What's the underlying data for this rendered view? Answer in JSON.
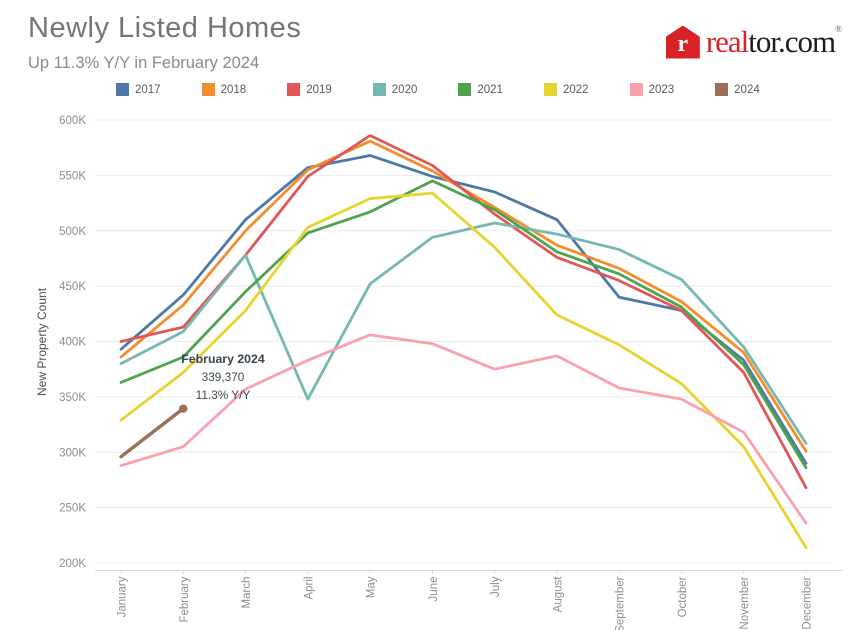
{
  "header": {
    "title": "Newly Listed Homes",
    "subtitle": "Up 11.3% Y/Y in February 2024"
  },
  "logo": {
    "house_letter": "r",
    "text_red": "real",
    "text_dark": "tor.com",
    "registered_mark": "®",
    "brand_red": "#d92228"
  },
  "legend": [
    {
      "label": "2017",
      "color": "#4e79a7"
    },
    {
      "label": "2018",
      "color": "#f28e2b"
    },
    {
      "label": "2019",
      "color": "#e15759"
    },
    {
      "label": "2020",
      "color": "#76b7b2"
    },
    {
      "label": "2021",
      "color": "#4da44d"
    },
    {
      "label": "2022",
      "color": "#e6d42f"
    },
    {
      "label": "2023",
      "color": "#f9a2ae"
    },
    {
      "label": "2024",
      "color": "#9c7057"
    }
  ],
  "chart_data": {
    "type": "line",
    "title": "Newly Listed Homes",
    "subtitle": "Up 11.3% Y/Y in February 2024",
    "xlabel": "",
    "ylabel": "New Property Count",
    "x": [
      "January",
      "February",
      "March",
      "April",
      "May",
      "June",
      "July",
      "August",
      "September",
      "October",
      "November",
      "December"
    ],
    "ylim": [
      200000,
      600000
    ],
    "y_tick_step": 50000,
    "y_tick_labels": [
      "200K",
      "250K",
      "300K",
      "350K",
      "400K",
      "450K",
      "500K",
      "550K",
      "600K"
    ],
    "grid": "horizontal",
    "legend_position": "top",
    "series": [
      {
        "name": "2017",
        "color": "#4e79a7",
        "values": [
          393000,
          442000,
          510000,
          557000,
          568000,
          549000,
          535000,
          510000,
          440000,
          428000,
          383000,
          290000
        ]
      },
      {
        "name": "2018",
        "color": "#f28e2b",
        "values": [
          386000,
          433000,
          500000,
          555000,
          581000,
          554000,
          521000,
          487000,
          466000,
          436000,
          390000,
          301000
        ]
      },
      {
        "name": "2019",
        "color": "#e15759",
        "values": [
          400000,
          413000,
          478000,
          549000,
          586000,
          559000,
          515000,
          476000,
          455000,
          428000,
          372000,
          268000
        ]
      },
      {
        "name": "2020",
        "color": "#76b7b2",
        "values": [
          380000,
          409000,
          478000,
          348000,
          452000,
          494000,
          507000,
          497000,
          483000,
          456000,
          395000,
          308000
        ]
      },
      {
        "name": "2021",
        "color": "#4da44d",
        "values": [
          363000,
          386000,
          445000,
          498000,
          517000,
          545000,
          519000,
          481000,
          461000,
          431000,
          379000,
          286000
        ]
      },
      {
        "name": "2022",
        "color": "#e6d42f",
        "values": [
          329000,
          372000,
          428000,
          503000,
          529000,
          534000,
          485000,
          424000,
          397000,
          362000,
          305000,
          214000
        ]
      },
      {
        "name": "2023",
        "color": "#f9a2ae",
        "values": [
          288000,
          305000,
          357000,
          383000,
          406000,
          398000,
          375000,
          387000,
          358000,
          348000,
          318000,
          236000
        ]
      },
      {
        "name": "2024",
        "color": "#9c7057",
        "end_dot": true,
        "values": [
          296000,
          339370
        ]
      }
    ],
    "annotation": {
      "lines": [
        "February 2024",
        "339,370",
        "11.3% Y/Y"
      ],
      "attached_to": {
        "series": "2024",
        "month": "February",
        "value": 339370
      }
    }
  }
}
